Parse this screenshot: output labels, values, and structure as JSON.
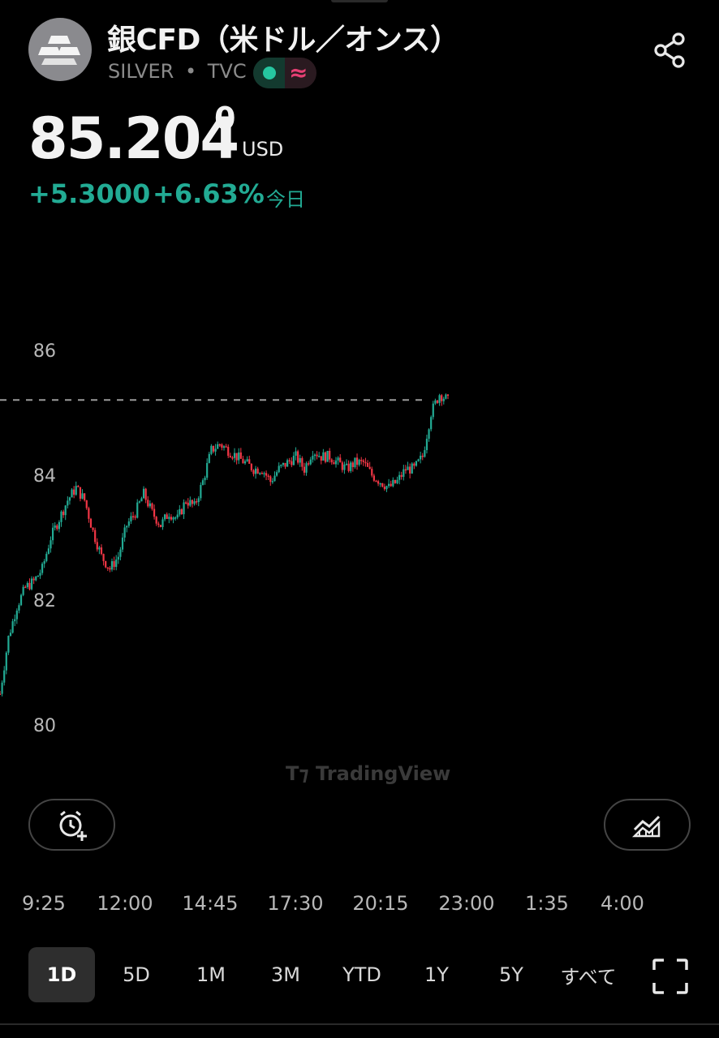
{
  "header": {
    "title": "銀CFD（米ドル／オンス）",
    "symbol": "SILVER",
    "separator": "•",
    "exchange": "TVC",
    "icons": {
      "logo": "silver-bars-icon",
      "market_status": "market-open-dot-icon",
      "data_type": "delayed-data-icon",
      "share": "share-icon"
    }
  },
  "quote": {
    "price_main": "85.204",
    "price_sup": "0",
    "currency": "USD",
    "change": "+5.3000",
    "change_percent": "+6.63%",
    "period": "今日"
  },
  "colors": {
    "up": "#22ab94",
    "down": "#f23645",
    "background": "#000000"
  },
  "chart_data": {
    "type": "candlestick",
    "y_ticks": [
      "86",
      "84",
      "82",
      "80"
    ],
    "x_ticks": [
      "9:25",
      "12:00",
      "14:45",
      "17:30",
      "20:15",
      "23:00",
      "1:35",
      "4:00"
    ],
    "ylim": [
      80,
      86
    ],
    "last_price_line": 85.204,
    "close_series": [
      80.5,
      81.4,
      81.9,
      82.2,
      82.3,
      82.5,
      83.0,
      83.3,
      83.6,
      83.8,
      83.6,
      83.1,
      82.7,
      82.5,
      82.7,
      83.2,
      83.4,
      83.7,
      83.4,
      83.2,
      83.4,
      83.3,
      83.6,
      83.5,
      83.9,
      84.4,
      84.5,
      84.4,
      84.3,
      84.2,
      84.1,
      84.1,
      83.9,
      84.1,
      84.2,
      84.3,
      84.1,
      84.4,
      84.3,
      84.3,
      84.2,
      84.1,
      84.2,
      84.2,
      84.0,
      83.9,
      83.8,
      83.9,
      84.1,
      84.1,
      84.3,
      85.0,
      85.3,
      85.2
    ]
  },
  "watermark": "TradingView",
  "toolbar": {
    "alert_icon": "add-alarm-icon",
    "indicator_icon": "chart-style-icon",
    "fullscreen_icon": "fullscreen-icon"
  },
  "ranges": [
    {
      "label": "1D",
      "active": true
    },
    {
      "label": "5D",
      "active": false
    },
    {
      "label": "1M",
      "active": false
    },
    {
      "label": "3M",
      "active": false
    },
    {
      "label": "YTD",
      "active": false
    },
    {
      "label": "1Y",
      "active": false
    },
    {
      "label": "5Y",
      "active": false
    },
    {
      "label": "すべて",
      "active": false
    }
  ]
}
